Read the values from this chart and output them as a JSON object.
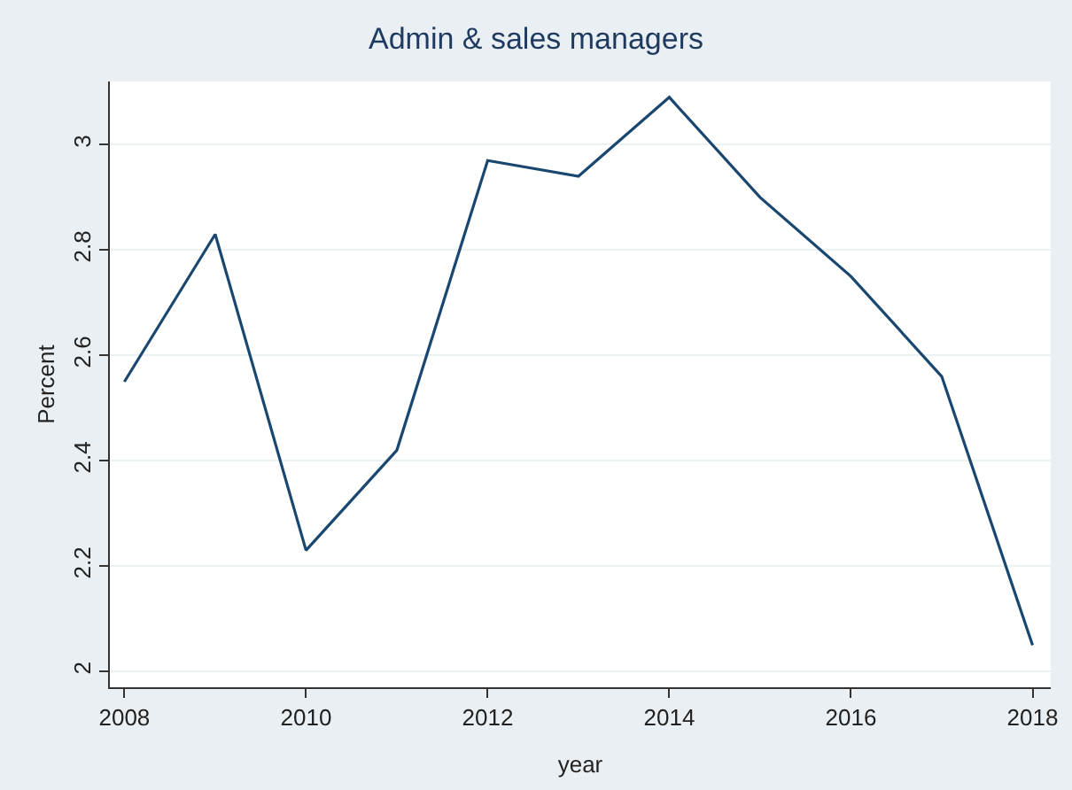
{
  "chart_data": {
    "type": "line",
    "title": "Admin & sales managers",
    "xlabel": "year",
    "ylabel": "Percent",
    "x": [
      2008,
      2009,
      2010,
      2011,
      2012,
      2013,
      2014,
      2015,
      2016,
      2017,
      2018
    ],
    "series": [
      {
        "color": "#1a476f",
        "values": [
          2.55,
          2.83,
          2.23,
          2.42,
          2.97,
          2.94,
          3.09,
          2.9,
          2.75,
          2.56,
          2.05
        ]
      }
    ],
    "xlim": [
      2007.84,
      2018.2
    ],
    "xticks": [
      2008,
      2010,
      2012,
      2014,
      2016,
      2018
    ],
    "ylim": [
      1.97,
      3.12
    ],
    "yticks": [
      2,
      2.2,
      2.4,
      2.6,
      2.8,
      3
    ],
    "grid": "y",
    "marker": "none",
    "line_style": "solid"
  }
}
